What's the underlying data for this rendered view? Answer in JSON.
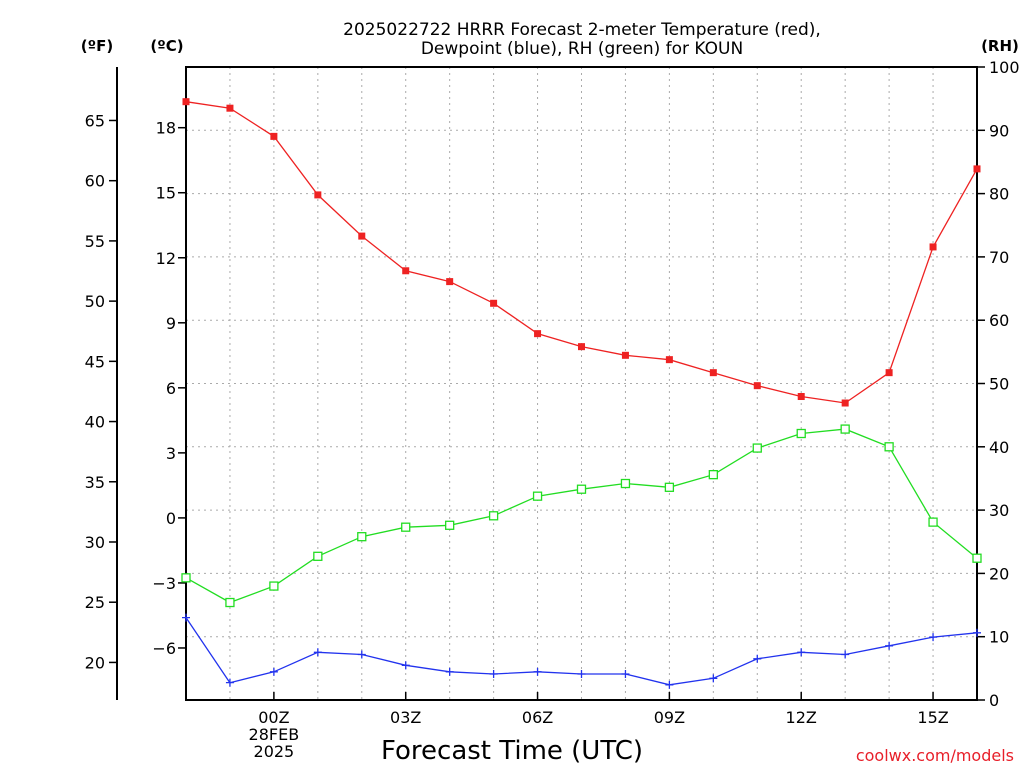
{
  "chart_data": {
    "type": "line",
    "title_lines": [
      "2025022722 HRRR Forecast 2-meter Temperature (red),",
      "Dewpoint (blue), RH (green) for KOUN"
    ],
    "xlabel": "Forecast Time (UTC)",
    "x_hours": [
      -2,
      -1,
      0,
      1,
      2,
      3,
      4,
      5,
      6,
      7,
      8,
      9,
      10,
      11,
      12,
      13,
      14,
      15,
      16
    ],
    "x_tick_labels": [
      {
        "hour": 0,
        "lines": [
          "00Z",
          "28FEB",
          "2025"
        ]
      },
      {
        "hour": 3,
        "lines": [
          "03Z"
        ]
      },
      {
        "hour": 6,
        "lines": [
          "06Z"
        ]
      },
      {
        "hour": 9,
        "lines": [
          "09Z"
        ]
      },
      {
        "hour": 12,
        "lines": [
          "12Z"
        ]
      },
      {
        "hour": 15,
        "lines": [
          "15Z"
        ]
      }
    ],
    "xlim": [
      -2,
      16
    ],
    "celsius_axis": {
      "unit_label": "(ºC)",
      "ylim": [
        -8.4,
        20.8
      ],
      "ticks": [
        -6,
        -3,
        0,
        3,
        6,
        9,
        12,
        15,
        18
      ]
    },
    "fahrenheit_axis": {
      "unit_label": "(ºF)",
      "ticks": [
        20,
        25,
        30,
        35,
        40,
        45,
        50,
        55,
        60,
        65
      ]
    },
    "rh_axis": {
      "unit_label": "(RH)",
      "ylim": [
        0,
        100
      ],
      "ticks": [
        0,
        10,
        20,
        30,
        40,
        50,
        60,
        70,
        80,
        90,
        100
      ]
    },
    "grid": true,
    "series": [
      {
        "name": "Temperature",
        "color": "#ee2222",
        "marker": "filled-square",
        "axis": "celsius",
        "values": [
          19.2,
          18.9,
          17.6,
          14.9,
          13.0,
          11.4,
          10.9,
          9.9,
          8.5,
          7.9,
          7.5,
          7.3,
          6.7,
          6.1,
          5.6,
          5.3,
          6.7,
          12.5,
          16.1
        ]
      },
      {
        "name": "Dewpoint",
        "color": "#2233ee",
        "marker": "plus",
        "axis": "celsius",
        "values": [
          -4.6,
          -7.6,
          -7.1,
          -6.2,
          -6.3,
          -6.8,
          -7.1,
          -7.2,
          -7.1,
          -7.2,
          -7.2,
          -7.7,
          -7.4,
          -6.5,
          -6.2,
          -6.3,
          -5.9,
          -5.5,
          -5.3
        ]
      },
      {
        "name": "RH",
        "color": "#22dd22",
        "marker": "open-square",
        "axis": "rh",
        "values": [
          19.3,
          15.4,
          18.0,
          22.7,
          25.8,
          27.3,
          27.6,
          29.1,
          32.2,
          33.3,
          34.2,
          33.6,
          35.6,
          39.8,
          42.1,
          42.8,
          40.0,
          28.1,
          22.4
        ]
      }
    ]
  },
  "credit": "coolwx.com/models"
}
